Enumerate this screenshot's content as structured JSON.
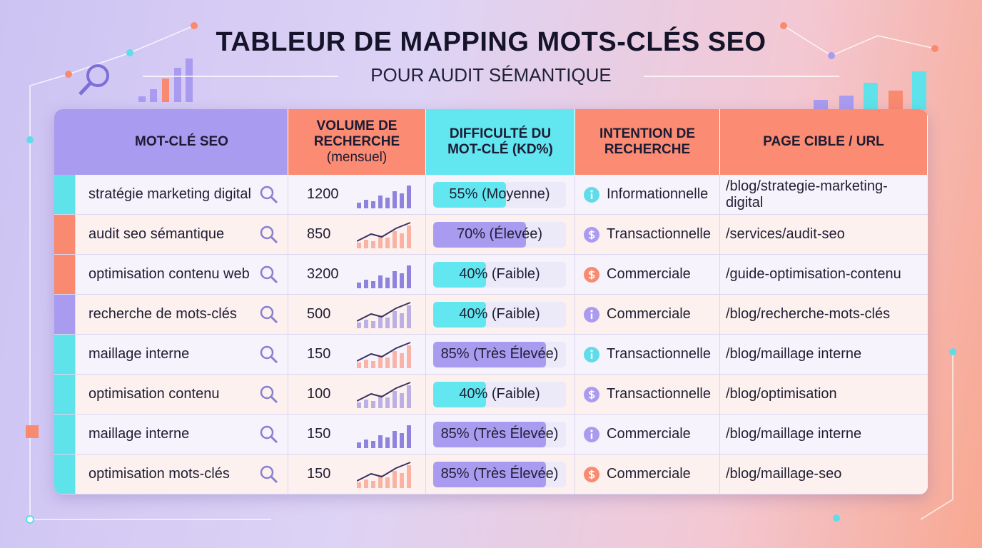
{
  "header": {
    "title": "TABLEUR DE MAPPING MOTS-CLÉS SEO",
    "subtitle": "POUR AUDIT SÉMANTIQUE"
  },
  "table": {
    "columns": [
      {
        "title": "MOT-CLÉ SEO",
        "color": "#a99cf0"
      },
      {
        "title": "VOLUME DE RECHERCHE",
        "note": "(mensuel)",
        "color": "#fb8b72"
      },
      {
        "title": "DIFFICULTÉ DU MOT-CLÉ (KD%)",
        "color": "#62e6f0"
      },
      {
        "title": "INTENTION DE RECHERCHE",
        "color": "#fb8b72"
      },
      {
        "title": "PAGE CIBLE / URL",
        "color": "#fb8b72"
      }
    ],
    "rows": [
      {
        "keyword": "stratégie marketing digital",
        "volume": "1200",
        "kd": {
          "value": 55,
          "label": "55% (Moyenne)"
        },
        "kd_color": "#62e6f0",
        "intent": "Informationnelle",
        "icon": "info",
        "icon_color": "#5fdcea",
        "url": "/blog/strategie-marketing-digital",
        "accent": "#5fe3ea"
      },
      {
        "keyword": "audit seo sémantique",
        "volume": "850",
        "kd": {
          "value": 70,
          "label": "70% (Élevée)"
        },
        "kd_color": "#a99cf0",
        "intent": "Transactionnelle",
        "icon": "dollar",
        "icon_color": "#a99cf0",
        "url": "/services/audit-seo",
        "accent": "#f98a70"
      },
      {
        "keyword": "optimisation contenu web",
        "volume": "3200",
        "kd": {
          "value": 40,
          "label": "40% (Faible)"
        },
        "kd_color": "#62e6f0",
        "intent": "Commerciale",
        "icon": "dollar",
        "icon_color": "#f98a70",
        "url": "/guide-optimisation-contenu",
        "accent": "#f98a70"
      },
      {
        "keyword": "recherche de mots-clés",
        "volume": "500",
        "kd": {
          "value": 40,
          "label": "40% (Faible)"
        },
        "kd_color": "#62e6f0",
        "intent": "Commerciale",
        "icon": "info",
        "icon_color": "#a99cf0",
        "url": "/blog/recherche-mots-clés",
        "accent": "#a99cf0"
      },
      {
        "keyword": "maillage interne",
        "volume": "150",
        "kd": {
          "value": 85,
          "label": "85% (Très Élevée)"
        },
        "kd_color": "#a99cf0",
        "intent": "Transactionnelle",
        "icon": "info",
        "icon_color": "#5fdcea",
        "url": "/blog/maillage interne",
        "accent": "#5fe3ea"
      },
      {
        "keyword": "optimisation contenu",
        "volume": "100",
        "kd": {
          "value": 40,
          "label": "40% (Faible)"
        },
        "kd_color": "#62e6f0",
        "intent": "Transactionnelle",
        "icon": "dollar",
        "icon_color": "#a99cf0",
        "url": "/blog/optimisation",
        "accent": "#5fe3ea"
      },
      {
        "keyword": "maillage interne",
        "volume": "150",
        "kd": {
          "value": 85,
          "label": "85% (Très Élevée)"
        },
        "kd_color": "#a99cf0",
        "intent": "Commerciale",
        "icon": "info",
        "icon_color": "#a99cf0",
        "url": "/blog/maillage interne",
        "accent": "#5fe3ea"
      },
      {
        "keyword": "optimisation mots-clés",
        "volume": "150",
        "kd": {
          "value": 85,
          "label": "85% (Très Élevée)"
        },
        "kd_color": "#a99cf0",
        "intent": "Commerciale",
        "icon": "dollar",
        "icon_color": "#f98a70",
        "url": "/blog/maillage-seo",
        "accent": "#5fe3ea"
      }
    ]
  }
}
